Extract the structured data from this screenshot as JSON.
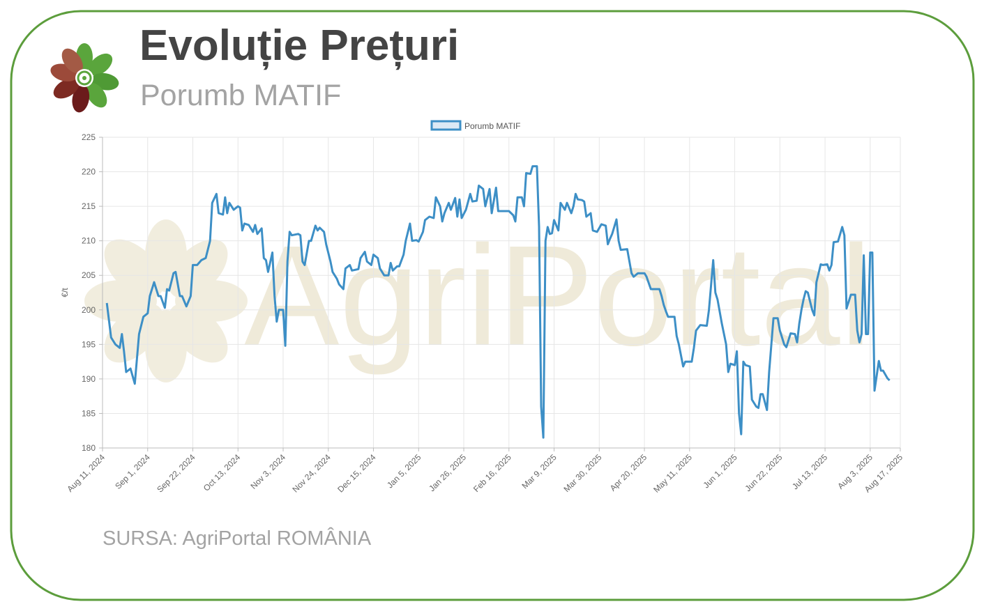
{
  "header": {
    "title": "Evoluție Prețuri",
    "subtitle": "Porumb MATIF"
  },
  "watermark": "AgriPortal",
  "footer": {
    "source": "SURSA: AgriPortal ROMÂNIA"
  },
  "chart_data": {
    "type": "line",
    "ylabel": "€/t",
    "legend": "top",
    "grid": true,
    "ylim": [
      180,
      225
    ],
    "yticks": [
      180,
      185,
      190,
      195,
      200,
      205,
      210,
      215,
      220,
      225
    ],
    "xlim": [
      "2024-08-11",
      "2025-08-17"
    ],
    "xticks": [
      {
        "value": "2024-08-11",
        "label": "Aug 11, 2024"
      },
      {
        "value": "2024-09-01",
        "label": "Sep 1, 2024"
      },
      {
        "value": "2024-09-22",
        "label": "Sep 22, 2024"
      },
      {
        "value": "2024-10-13",
        "label": "Oct 13, 2024"
      },
      {
        "value": "2024-11-03",
        "label": "Nov 3, 2024"
      },
      {
        "value": "2024-11-24",
        "label": "Nov 24, 2024"
      },
      {
        "value": "2024-12-15",
        "label": "Dec 15, 2024"
      },
      {
        "value": "2025-01-05",
        "label": "Jan 5, 2025"
      },
      {
        "value": "2025-01-26",
        "label": "Jan 26, 2025"
      },
      {
        "value": "2025-02-16",
        "label": "Feb 16, 2025"
      },
      {
        "value": "2025-03-09",
        "label": "Mar 9, 2025"
      },
      {
        "value": "2025-03-30",
        "label": "Mar 30, 2025"
      },
      {
        "value": "2025-04-20",
        "label": "Apr 20, 2025"
      },
      {
        "value": "2025-05-11",
        "label": "May 11, 2025"
      },
      {
        "value": "2025-06-01",
        "label": "Jun 1, 2025"
      },
      {
        "value": "2025-06-22",
        "label": "Jun 22, 2025"
      },
      {
        "value": "2025-07-13",
        "label": "Jul 13, 2025"
      },
      {
        "value": "2025-08-03",
        "label": "Aug 3, 2025"
      },
      {
        "value": "2025-08-17",
        "label": "Aug 17, 2025"
      }
    ],
    "x": [
      "2024-08-13",
      "2024-08-15",
      "2024-08-17",
      "2024-08-19",
      "2024-08-20",
      "2024-08-21",
      "2024-08-22",
      "2024-08-24",
      "2024-08-26",
      "2024-08-28",
      "2024-08-30",
      "2024-09-01",
      "2024-09-02",
      "2024-09-04",
      "2024-09-06",
      "2024-09-07",
      "2024-09-09",
      "2024-09-10",
      "2024-09-11",
      "2024-09-13",
      "2024-09-14",
      "2024-09-16",
      "2024-09-17",
      "2024-09-19",
      "2024-09-21",
      "2024-09-22",
      "2024-09-24",
      "2024-09-26",
      "2024-09-28",
      "2024-09-30",
      "2024-10-01",
      "2024-10-03",
      "2024-10-04",
      "2024-10-06",
      "2024-10-07",
      "2024-10-08",
      "2024-10-09",
      "2024-10-11",
      "2024-10-13",
      "2024-10-14",
      "2024-10-15",
      "2024-10-16",
      "2024-10-18",
      "2024-10-20",
      "2024-10-21",
      "2024-10-22",
      "2024-10-24",
      "2024-10-25",
      "2024-10-26",
      "2024-10-27",
      "2024-10-29",
      "2024-10-30",
      "2024-10-31",
      "2024-11-01",
      "2024-11-03",
      "2024-11-04",
      "2024-11-05",
      "2024-11-06",
      "2024-11-07",
      "2024-11-10",
      "2024-11-11",
      "2024-11-12",
      "2024-11-13",
      "2024-11-15",
      "2024-11-16",
      "2024-11-18",
      "2024-11-19",
      "2024-11-20",
      "2024-11-22",
      "2024-11-23",
      "2024-11-25",
      "2024-11-26",
      "2024-11-28",
      "2024-11-29",
      "2024-12-01",
      "2024-12-02",
      "2024-12-04",
      "2024-12-05",
      "2024-12-08",
      "2024-12-09",
      "2024-12-11",
      "2024-12-12",
      "2024-12-14",
      "2024-12-15",
      "2024-12-17",
      "2024-12-18",
      "2024-12-20",
      "2024-12-22",
      "2024-12-23",
      "2024-12-24",
      "2024-12-26",
      "2024-12-27",
      "2024-12-29",
      "2024-12-30",
      "2025-01-01",
      "2025-01-02",
      "2025-01-04",
      "2025-01-05",
      "2025-01-07",
      "2025-01-08",
      "2025-01-10",
      "2025-01-12",
      "2025-01-13",
      "2025-01-15",
      "2025-01-16",
      "2025-01-17",
      "2025-01-19",
      "2025-01-20",
      "2025-01-22",
      "2025-01-23",
      "2025-01-24",
      "2025-01-25",
      "2025-01-27",
      "2025-01-29",
      "2025-01-30",
      "2025-02-01",
      "2025-02-02",
      "2025-02-04",
      "2025-02-05",
      "2025-02-07",
      "2025-02-08",
      "2025-02-10",
      "2025-02-11",
      "2025-02-14",
      "2025-02-16",
      "2025-02-18",
      "2025-02-19",
      "2025-02-20",
      "2025-02-22",
      "2025-02-23",
      "2025-02-24",
      "2025-02-26",
      "2025-02-27",
      "2025-03-01",
      "2025-03-02",
      "2025-03-03",
      "2025-03-04",
      "2025-03-05",
      "2025-03-06",
      "2025-03-07",
      "2025-03-08",
      "2025-03-09",
      "2025-03-11",
      "2025-03-12",
      "2025-03-14",
      "2025-03-15",
      "2025-03-17",
      "2025-03-18",
      "2025-03-19",
      "2025-03-20",
      "2025-03-22",
      "2025-03-23",
      "2025-03-24",
      "2025-03-26",
      "2025-03-27",
      "2025-03-29",
      "2025-03-31",
      "2025-04-02",
      "2025-04-03",
      "2025-04-04",
      "2025-04-05",
      "2025-04-07",
      "2025-04-08",
      "2025-04-09",
      "2025-04-12",
      "2025-04-14",
      "2025-04-15",
      "2025-04-17",
      "2025-04-20",
      "2025-04-21",
      "2025-04-23",
      "2025-04-27",
      "2025-04-28",
      "2025-04-29",
      "2025-04-30",
      "2025-05-01",
      "2025-05-04",
      "2025-05-05",
      "2025-05-06",
      "2025-05-08",
      "2025-05-09",
      "2025-05-12",
      "2025-05-13",
      "2025-05-14",
      "2025-05-16",
      "2025-05-19",
      "2025-05-20",
      "2025-05-22",
      "2025-05-23",
      "2025-05-24",
      "2025-05-26",
      "2025-05-28",
      "2025-05-29",
      "2025-05-30",
      "2025-06-01",
      "2025-06-02",
      "2025-06-03",
      "2025-06-04",
      "2025-06-05",
      "2025-06-06",
      "2025-06-08",
      "2025-06-09",
      "2025-06-11",
      "2025-06-12",
      "2025-06-13",
      "2025-06-14",
      "2025-06-16",
      "2025-06-17",
      "2025-06-19",
      "2025-06-21",
      "2025-06-22",
      "2025-06-24",
      "2025-06-25",
      "2025-06-27",
      "2025-06-29",
      "2025-06-30",
      "2025-07-01",
      "2025-07-02",
      "2025-07-03",
      "2025-07-04",
      "2025-07-05",
      "2025-07-07",
      "2025-07-08",
      "2025-07-09",
      "2025-07-11",
      "2025-07-12",
      "2025-07-14",
      "2025-07-15",
      "2025-07-16",
      "2025-07-17",
      "2025-07-19",
      "2025-07-21",
      "2025-07-22",
      "2025-07-23",
      "2025-07-25",
      "2025-07-27",
      "2025-07-28",
      "2025-07-29",
      "2025-07-30",
      "2025-07-31",
      "2025-08-01",
      "2025-08-02",
      "2025-08-03",
      "2025-08-04",
      "2025-08-05",
      "2025-08-07",
      "2025-08-08",
      "2025-08-09",
      "2025-08-11",
      "2025-08-12"
    ],
    "series": [
      {
        "name": "Porumb MATIF",
        "color": "#3d8fc6",
        "values": [
          201,
          196,
          195,
          194.5,
          196.5,
          194,
          191,
          191.5,
          189.3,
          196.5,
          199,
          199.5,
          202,
          204,
          202,
          202,
          200.3,
          203,
          202.8,
          205.3,
          205.5,
          202,
          202,
          200.5,
          202,
          206.5,
          206.5,
          207.2,
          207.5,
          210,
          215.5,
          216.8,
          214,
          213.8,
          216.3,
          214,
          215.5,
          214.5,
          215,
          214.8,
          211.5,
          212.5,
          212.3,
          211.3,
          212.3,
          211,
          211.8,
          207.5,
          207.2,
          205.5,
          208.3,
          202,
          198.3,
          200,
          200,
          194.8,
          207,
          211.3,
          210.8,
          211,
          210.8,
          207,
          206.5,
          210,
          210,
          212.2,
          211.5,
          211.9,
          211.3,
          209.5,
          207,
          205.5,
          204.5,
          203.7,
          203,
          206,
          206.5,
          205.7,
          205.9,
          207.5,
          208.4,
          207,
          206.5,
          208,
          207.5,
          206,
          205,
          205,
          206.8,
          205.7,
          206.3,
          206.3,
          208,
          210,
          212.5,
          210,
          210.1,
          209.9,
          211.3,
          213,
          213.5,
          213.3,
          216.3,
          215,
          212.8,
          214,
          215.5,
          214.5,
          216.2,
          213.5,
          216,
          213.3,
          214.5,
          216.8,
          215.7,
          215.8,
          218,
          217.5,
          215,
          217.5,
          214,
          217.7,
          214.3,
          214.3,
          214.3,
          213.7,
          212.8,
          216.3,
          216.3,
          215,
          219.8,
          219.7,
          220.8,
          220.8,
          212,
          186,
          181.5,
          210,
          212,
          211,
          211.1,
          213,
          211.5,
          215.5,
          214.5,
          215.5,
          214,
          215,
          216.8,
          216,
          215.9,
          215.7,
          213.5,
          214,
          211.5,
          211.3,
          212.4,
          212.2,
          209.5,
          210.3,
          211,
          213.1,
          210,
          208.7,
          208.8,
          205.3,
          204.8,
          205.3,
          205.3,
          204.8,
          203,
          203,
          202,
          200.7,
          199.8,
          199,
          199,
          196.2,
          195,
          191.8,
          192.5,
          192.5,
          194.5,
          197,
          197.8,
          197.7,
          200,
          207.2,
          202.5,
          201.5,
          198,
          195,
          191,
          192.2,
          192,
          194,
          185,
          182,
          192.5,
          192,
          191.8,
          187,
          186,
          185.8,
          187.8,
          187.8,
          185.5,
          191,
          198.8,
          198.8,
          197,
          195,
          194.6,
          196.6,
          196.5,
          195.3,
          198,
          200,
          201.5,
          202.7,
          202.5,
          200,
          199.2,
          204,
          206.6,
          206.5,
          206.6,
          205.7,
          206.5,
          209.8,
          209.9,
          212,
          210.8,
          200.2,
          202.2,
          202.2,
          197,
          195.3,
          196.5,
          207.9,
          196.5,
          196.5,
          208.3,
          208.3,
          188.3,
          192.6,
          191.2,
          191.2,
          190.1,
          189.8
        ]
      }
    ]
  }
}
